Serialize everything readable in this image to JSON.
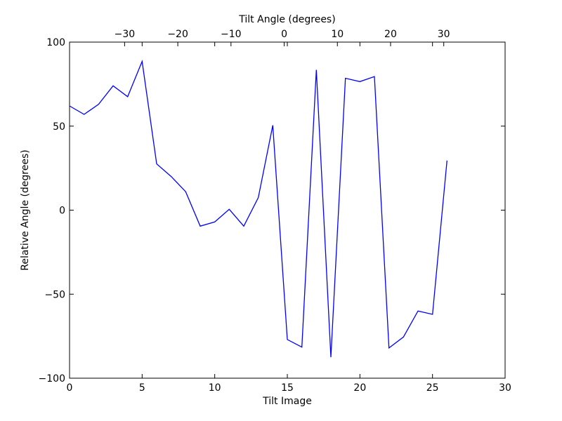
{
  "chart_data": {
    "type": "line",
    "xlabel": "Tilt Image",
    "ylabel": "Relative Angle (degrees)",
    "x2label": "Tilt Angle (degrees)",
    "xlim": [
      0,
      30
    ],
    "ylim": [
      -100,
      100
    ],
    "x2lim": [
      -40.35,
      41.53
    ],
    "xticks": [
      0,
      5,
      10,
      15,
      20,
      25,
      30
    ],
    "yticks": [
      -100,
      -50,
      0,
      50,
      100
    ],
    "x2ticks": [
      -30,
      -20,
      -10,
      0,
      10,
      20,
      30
    ],
    "xtick_labels": [
      "0",
      "5",
      "10",
      "15",
      "20",
      "25",
      "30"
    ],
    "ytick_labels": [
      "−100",
      "−50",
      "0",
      "50",
      "100"
    ],
    "x2tick_labels": [
      "−30",
      "−20",
      "−10",
      "0",
      "10",
      "20",
      "30"
    ],
    "grid": false,
    "line_color": "#0000ff",
    "series": [
      {
        "x": [
          0,
          1,
          2,
          3,
          4,
          5,
          6,
          7,
          8,
          9,
          10,
          11,
          12,
          13,
          14,
          15,
          16,
          17,
          18,
          19,
          20,
          21,
          22,
          23,
          24,
          25,
          26
        ],
        "values": [
          62,
          57,
          63,
          74,
          67.5,
          88.5,
          27.5,
          20,
          11,
          -9.5,
          -7,
          0.5,
          -9.5,
          7.5,
          50.5,
          -77,
          -81.5,
          83.5,
          -87.5,
          78.5,
          76.5,
          79.5,
          -82,
          -75.5,
          -60,
          -62,
          29.5
        ]
      }
    ]
  }
}
